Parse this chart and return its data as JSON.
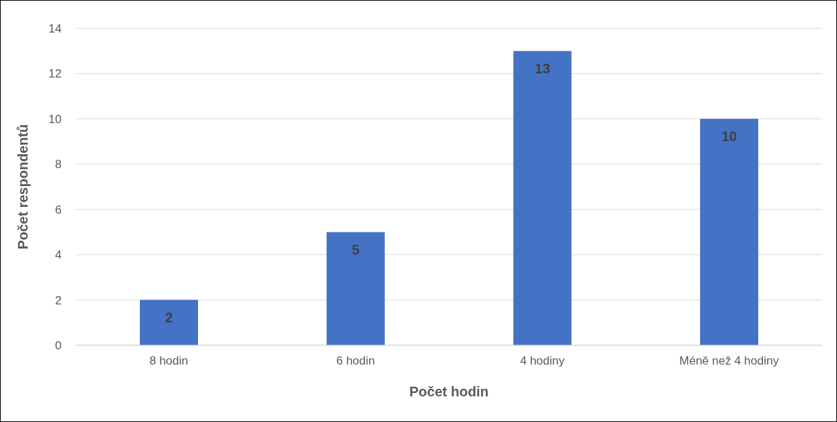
{
  "chart_data": {
    "type": "bar",
    "xlabel": "Počet hodin",
    "ylabel": "Počet respondentů",
    "categories": [
      "8 hodin",
      "6 hodin",
      "4 hodiny",
      "Méně než 4 hodiny"
    ],
    "values": [
      2,
      5,
      13,
      10
    ],
    "color": "#4472c4",
    "ylim": [
      0,
      14
    ],
    "yticks": [
      0,
      2,
      4,
      6,
      8,
      10,
      12,
      14
    ],
    "grid": "y",
    "data_labels": true
  }
}
